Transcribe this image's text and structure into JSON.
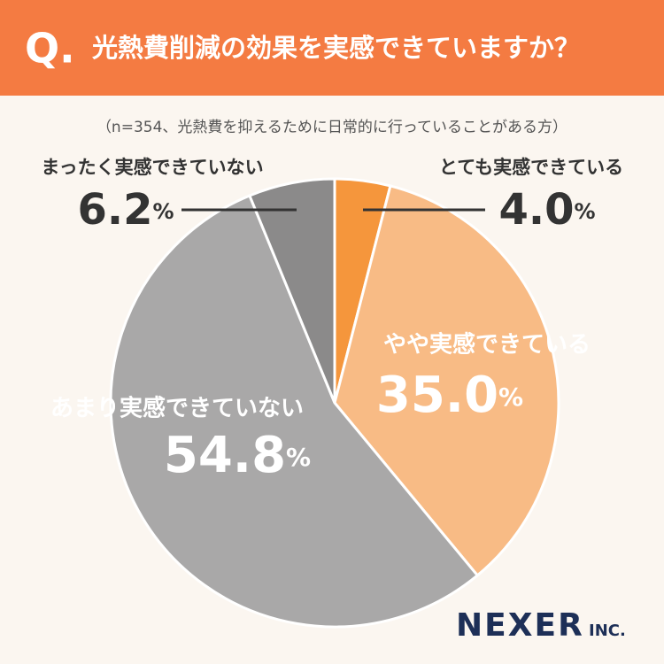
{
  "chart_data": {
    "type": "pie",
    "title_prefix": "Q.",
    "title": "光熱費削減の効果を実感できていますか？",
    "subtitle": "（n=354、光熱費を抑えるために日常的に行っていることがある方）",
    "categories": [
      "とても実感できている",
      "やや実感できている",
      "あまり実感できていない",
      "まったく実感できていない"
    ],
    "values": [
      4.0,
      35.0,
      54.8,
      6.2
    ],
    "value_labels": [
      "4.0%",
      "35.0%",
      "54.8%",
      "6.2%"
    ],
    "colors": [
      "#f5963c",
      "#f8bb85",
      "#a9a8a8",
      "#8b8a8a"
    ],
    "brand": "NEXER",
    "brand_suffix": "INC."
  }
}
